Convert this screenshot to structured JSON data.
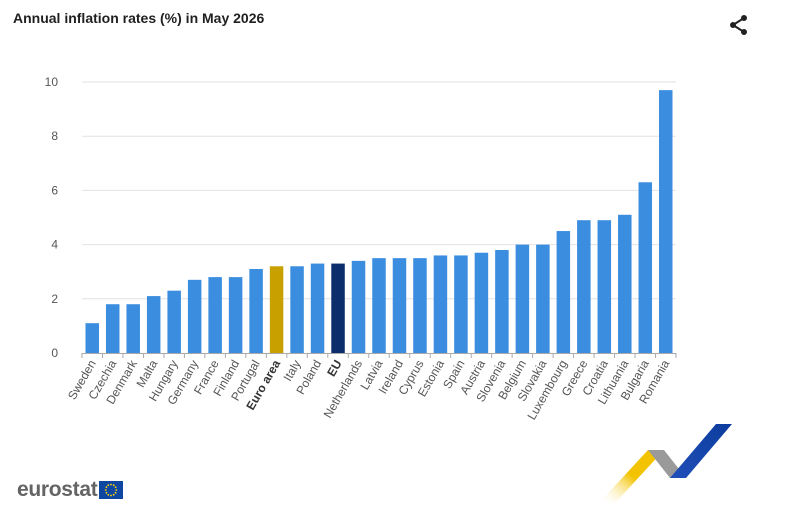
{
  "title": "Annual inflation rates (%) in May 2026",
  "share_icon": "share-icon",
  "logo": {
    "text": "eurostat",
    "flag_icon": "eu-flag-icon"
  },
  "colors": {
    "default_bar": "#3b8de0",
    "euro_area_bar": "#c8a000",
    "eu_bar": "#0b2d6b",
    "grid": "#e2e2e2",
    "axis": "#aaaaaa"
  },
  "chart_data": {
    "type": "bar",
    "title": "Annual inflation rates (%) in May 2026",
    "xlabel": "",
    "ylabel": "",
    "ylim": [
      0,
      10
    ],
    "yticks": [
      0,
      2,
      4,
      6,
      8,
      10
    ],
    "grid": true,
    "categories": [
      "Sweden",
      "Czechia",
      "Denmark",
      "Malta",
      "Hungary",
      "Germany",
      "France",
      "Finland",
      "Portugal",
      "Euro area",
      "Italy",
      "Poland",
      "EU",
      "Netherlands",
      "Latvia",
      "Ireland",
      "Cyprus",
      "Estonia",
      "Spain",
      "Austria",
      "Slovenia",
      "Belgium",
      "Slovakia",
      "Luxembourg",
      "Greece",
      "Croatia",
      "Lithuania",
      "Bulgaria",
      "Romania"
    ],
    "values": [
      1.1,
      1.8,
      1.8,
      2.1,
      2.3,
      2.7,
      2.8,
      2.8,
      3.1,
      3.2,
      3.2,
      3.3,
      3.3,
      3.4,
      3.5,
      3.5,
      3.5,
      3.6,
      3.6,
      3.7,
      3.8,
      4.0,
      4.0,
      4.5,
      4.9,
      4.9,
      5.1,
      6.3,
      9.7
    ],
    "highlight": {
      "Euro area": "euro_area_bar",
      "EU": "eu_bar"
    },
    "bold_labels": [
      "Euro area",
      "EU"
    ]
  }
}
